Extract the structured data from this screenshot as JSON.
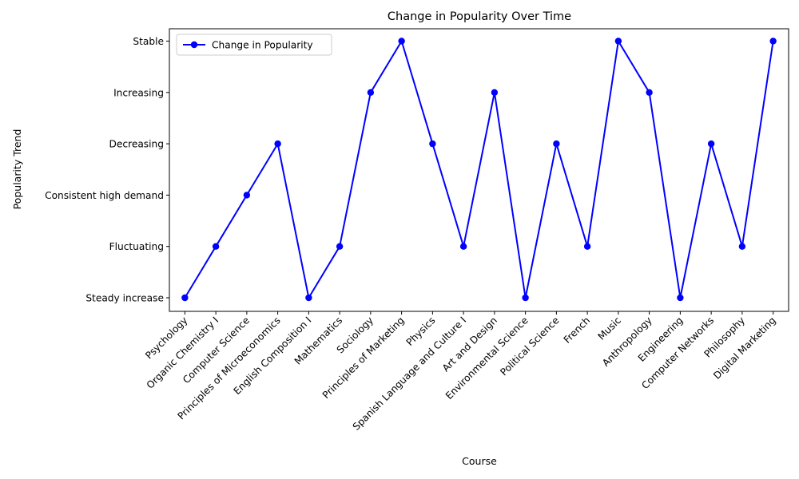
{
  "chart_data": {
    "type": "line",
    "title": "Change in Popularity Over Time",
    "xlabel": "Course",
    "ylabel": "Popularity Trend",
    "categories": [
      "Psychology",
      "Organic Chemistry I",
      "Computer Science",
      "Principles of Microeconomics",
      "English Composition I",
      "Mathematics",
      "Sociology",
      "Principles of Marketing",
      "Physics",
      "Spanish Language and Culture I",
      "Art and Design",
      "Environmental Science",
      "Political Science",
      "French",
      "Music",
      "Anthropology",
      "Engineering",
      "Computer Networks",
      "Philosophy",
      "Digital Marketing"
    ],
    "y_categories": [
      "Steady increase",
      "Fluctuating",
      "Consistent high demand",
      "Decreasing",
      "Increasing",
      "Stable"
    ],
    "series": [
      {
        "name": "Change in Popularity",
        "color": "#0000ff",
        "marker": "circle",
        "values": [
          "Steady increase",
          "Fluctuating",
          "Consistent high demand",
          "Decreasing",
          "Steady increase",
          "Fluctuating",
          "Increasing",
          "Stable",
          "Decreasing",
          "Fluctuating",
          "Increasing",
          "Steady increase",
          "Decreasing",
          "Fluctuating",
          "Stable",
          "Increasing",
          "Steady increase",
          "Decreasing",
          "Fluctuating",
          "Stable"
        ]
      }
    ],
    "grid": false,
    "legend_position": "top-left"
  }
}
